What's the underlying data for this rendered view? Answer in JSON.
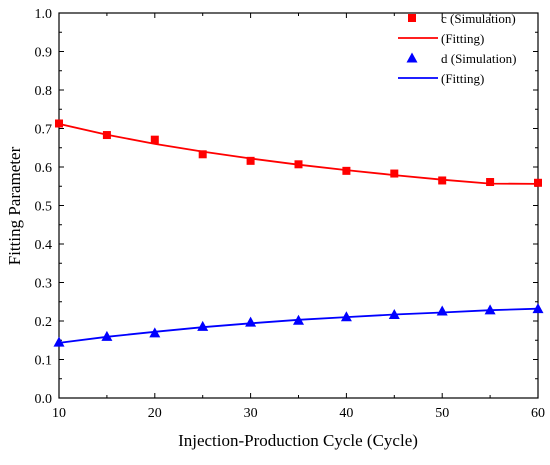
{
  "chart_data": {
    "type": "scatter",
    "title": "",
    "xlabel": "Injection-Production Cycle (Cycle)",
    "ylabel": "Fitting Parameter",
    "xlim": [
      10,
      60
    ],
    "ylim": [
      0.0,
      1.0
    ],
    "x_ticks": [
      "10",
      "20",
      "30",
      "40",
      "50",
      "60"
    ],
    "y_ticks": [
      "0.0",
      "0.1",
      "0.2",
      "0.3",
      "0.4",
      "0.5",
      "0.6",
      "0.7",
      "0.8",
      "0.9",
      "1.0"
    ],
    "grid": false,
    "legend_position": "top-right",
    "series": [
      {
        "name": "c (Simulation)",
        "kind": "points",
        "marker": "square",
        "color": "#ff0000",
        "x": [
          10,
          15,
          20,
          25,
          30,
          35,
          40,
          45,
          50,
          55,
          60
        ],
        "y": [
          0.713,
          0.683,
          0.671,
          0.633,
          0.616,
          0.607,
          0.59,
          0.583,
          0.565,
          0.561,
          0.559
        ]
      },
      {
        "name": "(Fitting)",
        "kind": "line",
        "color": "#ff0000",
        "x": [
          10,
          15,
          20,
          25,
          30,
          35,
          40,
          45,
          50,
          55,
          60
        ],
        "y": [
          0.712,
          0.684,
          0.66,
          0.64,
          0.622,
          0.606,
          0.592,
          0.579,
          0.567,
          0.557,
          0.556
        ]
      },
      {
        "name": "d (Simulation)",
        "kind": "points",
        "marker": "triangle",
        "color": "#0000ff",
        "x": [
          10,
          15,
          20,
          25,
          30,
          35,
          40,
          45,
          50,
          55,
          60
        ],
        "y": [
          0.145,
          0.16,
          0.169,
          0.186,
          0.197,
          0.202,
          0.211,
          0.217,
          0.226,
          0.229,
          0.232
        ]
      },
      {
        "name": "(Fitting)",
        "kind": "line",
        "color": "#0000ff",
        "x": [
          10,
          15,
          20,
          25,
          30,
          35,
          40,
          45,
          50,
          55,
          60
        ],
        "y": [
          0.143,
          0.159,
          0.172,
          0.184,
          0.194,
          0.203,
          0.21,
          0.217,
          0.222,
          0.228,
          0.232
        ]
      }
    ]
  }
}
